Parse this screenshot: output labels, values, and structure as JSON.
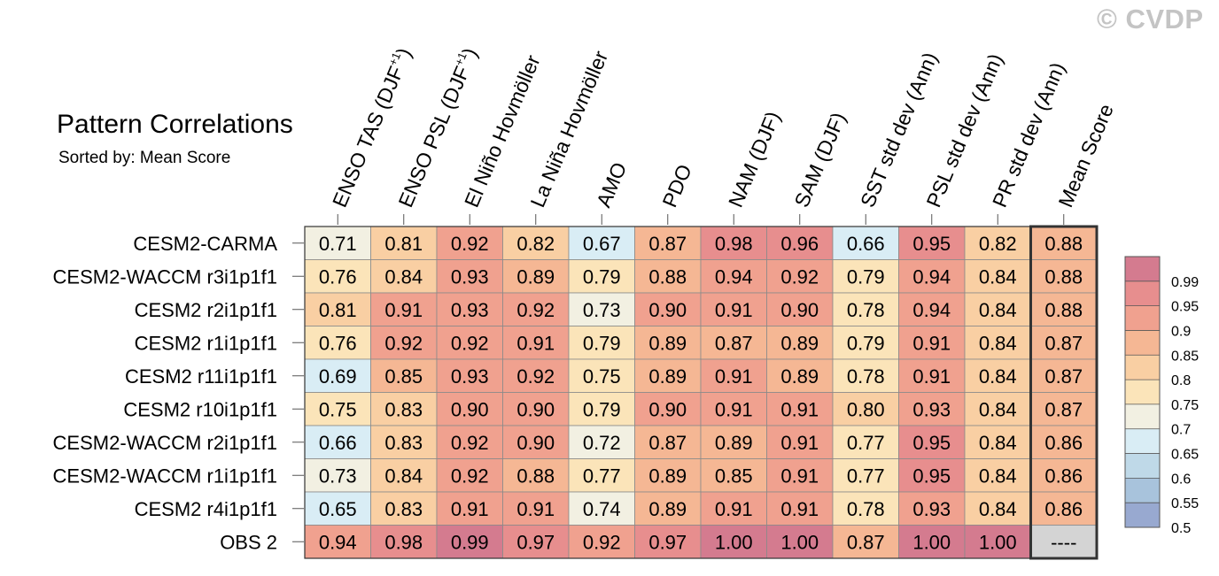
{
  "watermark": "© CVDP",
  "chart_data": {
    "type": "heatmap",
    "title": "Pattern Correlations",
    "subtitle": "Sorted by: Mean Score",
    "columns": [
      "ENSO TAS (DJF+1)",
      "ENSO PSL (DJF+1)",
      "El Niño Hovmöller",
      "La Niña Hovmöller",
      "AMO",
      "PDO",
      "NAM (DJF)",
      "SAM (DJF)",
      "SST std dev (Ann)",
      "PSL std dev (Ann)",
      "PR std dev (Ann)",
      "Mean Score"
    ],
    "rows": [
      {
        "name": "CESM2-CARMA",
        "values": [
          "0.71",
          "0.81",
          "0.92",
          "0.82",
          "0.67",
          "0.87",
          "0.98",
          "0.96",
          "0.66",
          "0.95",
          "0.82",
          "0.88"
        ]
      },
      {
        "name": "CESM2-WACCM r3i1p1f1",
        "values": [
          "0.76",
          "0.84",
          "0.93",
          "0.89",
          "0.79",
          "0.88",
          "0.94",
          "0.92",
          "0.79",
          "0.94",
          "0.84",
          "0.88"
        ]
      },
      {
        "name": "CESM2 r2i1p1f1",
        "values": [
          "0.81",
          "0.91",
          "0.93",
          "0.92",
          "0.73",
          "0.90",
          "0.91",
          "0.90",
          "0.78",
          "0.94",
          "0.84",
          "0.88"
        ]
      },
      {
        "name": "CESM2 r1i1p1f1",
        "values": [
          "0.76",
          "0.92",
          "0.92",
          "0.91",
          "0.79",
          "0.89",
          "0.87",
          "0.89",
          "0.79",
          "0.91",
          "0.84",
          "0.87"
        ]
      },
      {
        "name": "CESM2 r11i1p1f1",
        "values": [
          "0.69",
          "0.85",
          "0.93",
          "0.92",
          "0.75",
          "0.89",
          "0.91",
          "0.89",
          "0.78",
          "0.91",
          "0.84",
          "0.87"
        ]
      },
      {
        "name": "CESM2 r10i1p1f1",
        "values": [
          "0.75",
          "0.83",
          "0.90",
          "0.90",
          "0.79",
          "0.90",
          "0.91",
          "0.91",
          "0.80",
          "0.93",
          "0.84",
          "0.87"
        ]
      },
      {
        "name": "CESM2-WACCM r2i1p1f1",
        "values": [
          "0.66",
          "0.83",
          "0.92",
          "0.90",
          "0.72",
          "0.87",
          "0.89",
          "0.91",
          "0.77",
          "0.95",
          "0.84",
          "0.86"
        ]
      },
      {
        "name": "CESM2-WACCM r1i1p1f1",
        "values": [
          "0.73",
          "0.84",
          "0.92",
          "0.88",
          "0.77",
          "0.89",
          "0.85",
          "0.91",
          "0.77",
          "0.95",
          "0.84",
          "0.86"
        ]
      },
      {
        "name": "CESM2 r4i1p1f1",
        "values": [
          "0.65",
          "0.83",
          "0.91",
          "0.91",
          "0.74",
          "0.89",
          "0.91",
          "0.91",
          "0.78",
          "0.93",
          "0.84",
          "0.86"
        ]
      },
      {
        "name": "OBS 2",
        "values": [
          "0.94",
          "0.98",
          "0.99",
          "0.97",
          "0.92",
          "0.97",
          "1.00",
          "1.00",
          "0.87",
          "1.00",
          "1.00",
          "----"
        ]
      }
    ],
    "colorbar": {
      "labels": [
        "0.99",
        "0.95",
        "0.9",
        "0.85",
        "0.8",
        "0.75",
        "0.7",
        "0.65",
        "0.6",
        "0.55",
        "0.5"
      ],
      "colors": [
        "#d47b8f",
        "#e78e8e",
        "#f0a18f",
        "#f5b794",
        "#f9cfa3",
        "#fbe4b9",
        "#f2f0e2",
        "#d9edf5",
        "#bfd9e8",
        "#a8c3dc",
        "#98a9d0"
      ]
    },
    "missing_color": "#d4d4d4"
  }
}
